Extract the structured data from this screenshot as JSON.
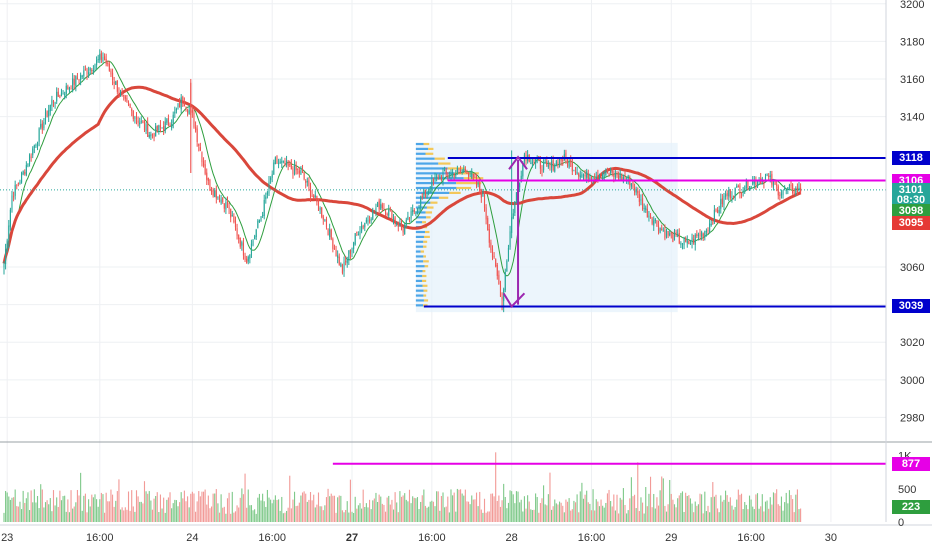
{
  "chart_data": {
    "type": "candlestick",
    "price_axis": {
      "ticks": [
        "3200",
        "3180",
        "3160",
        "3140",
        "3060",
        "3040",
        "3020",
        "3000",
        "2980"
      ],
      "tick_values": [
        3200,
        3180,
        3160,
        3140,
        3060,
        3040,
        3020,
        3000,
        2980
      ],
      "range": [
        2968,
        3202
      ]
    },
    "volume_axis": {
      "ticks": [
        "1K",
        "500",
        "0"
      ],
      "tick_values": [
        1000,
        500,
        0
      ],
      "range": [
        0,
        1130
      ]
    },
    "time_axis": {
      "labels": [
        "23",
        "16:00",
        "24",
        "16:00",
        "27",
        "16:00",
        "28",
        "16:00",
        "29",
        "16:00",
        "30"
      ],
      "bold": [
        false,
        false,
        false,
        false,
        true,
        false,
        false,
        false,
        false,
        false,
        false
      ],
      "bar_index": [
        2,
        60,
        118,
        168,
        218,
        268,
        318,
        368,
        418,
        468,
        518
      ]
    },
    "price_tags": [
      {
        "label": "3118",
        "value": 3118,
        "color": "#0000cc"
      },
      {
        "label": "3106",
        "value": 3106,
        "color": "#e600e6"
      },
      {
        "label": "3101",
        "value": 3101,
        "color": "#26a69a"
      },
      {
        "label": "08:30",
        "value": 3095.6,
        "color": "#26a69a"
      },
      {
        "label": "3098",
        "value": 3089.6,
        "color": "#2e9e3e"
      },
      {
        "label": "3095",
        "value": 3083.6,
        "color": "#e53935"
      },
      {
        "label": "3039",
        "value": 3039,
        "color": "#0000cc"
      }
    ],
    "volume_tags": [
      {
        "label": "877",
        "value": 877,
        "color": "#e600e6"
      },
      {
        "label": "223",
        "value": 223,
        "color": "#2e9e3e"
      }
    ],
    "horizontal_levels": [
      {
        "value": 3118,
        "color": "#0000cc",
        "from_bar": 278
      },
      {
        "value": 3106,
        "color": "#e600e6",
        "from_bar": 278
      },
      {
        "value": 3039,
        "color": "#0000cc",
        "from_bar": 263
      }
    ],
    "volume_level": {
      "value": 877,
      "color": "#e600e6",
      "from_bar": 206
    },
    "current_price": 3101,
    "colors": {
      "up": "#26a69a",
      "down": "#ef5350",
      "ma_slow": "#d9473b",
      "ma_fast": "#2e9e3e",
      "profile_up": "#4da6e8",
      "profile_down": "#f3c85a",
      "profile_box": "#e4f1fb"
    },
    "anchors": {
      "start": 3062,
      "points": [
        [
          0,
          3062
        ],
        [
          5,
          3098
        ],
        [
          12,
          3110
        ],
        [
          30,
          3148
        ],
        [
          50,
          3163
        ],
        [
          62,
          3172
        ],
        [
          75,
          3148
        ],
        [
          92,
          3130
        ],
        [
          105,
          3138
        ],
        [
          112,
          3150
        ],
        [
          118,
          3140
        ],
        [
          128,
          3104
        ],
        [
          140,
          3092
        ],
        [
          152,
          3064
        ],
        [
          162,
          3090
        ],
        [
          170,
          3116
        ],
        [
          186,
          3110
        ],
        [
          200,
          3087
        ],
        [
          212,
          3058
        ],
        [
          222,
          3080
        ],
        [
          236,
          3094
        ],
        [
          250,
          3080
        ],
        [
          262,
          3097
        ],
        [
          272,
          3108
        ],
        [
          290,
          3112
        ],
        [
          300,
          3098
        ],
        [
          305,
          3070
        ],
        [
          312,
          3043
        ],
        [
          318,
          3086
        ],
        [
          326,
          3120
        ],
        [
          340,
          3112
        ],
        [
          350,
          3118
        ],
        [
          364,
          3108
        ],
        [
          378,
          3110
        ],
        [
          392,
          3106
        ],
        [
          402,
          3090
        ],
        [
          414,
          3078
        ],
        [
          428,
          3072
        ],
        [
          440,
          3080
        ],
        [
          452,
          3098
        ],
        [
          466,
          3104
        ],
        [
          478,
          3108
        ],
        [
          486,
          3100
        ],
        [
          494,
          3101
        ]
      ]
    }
  }
}
